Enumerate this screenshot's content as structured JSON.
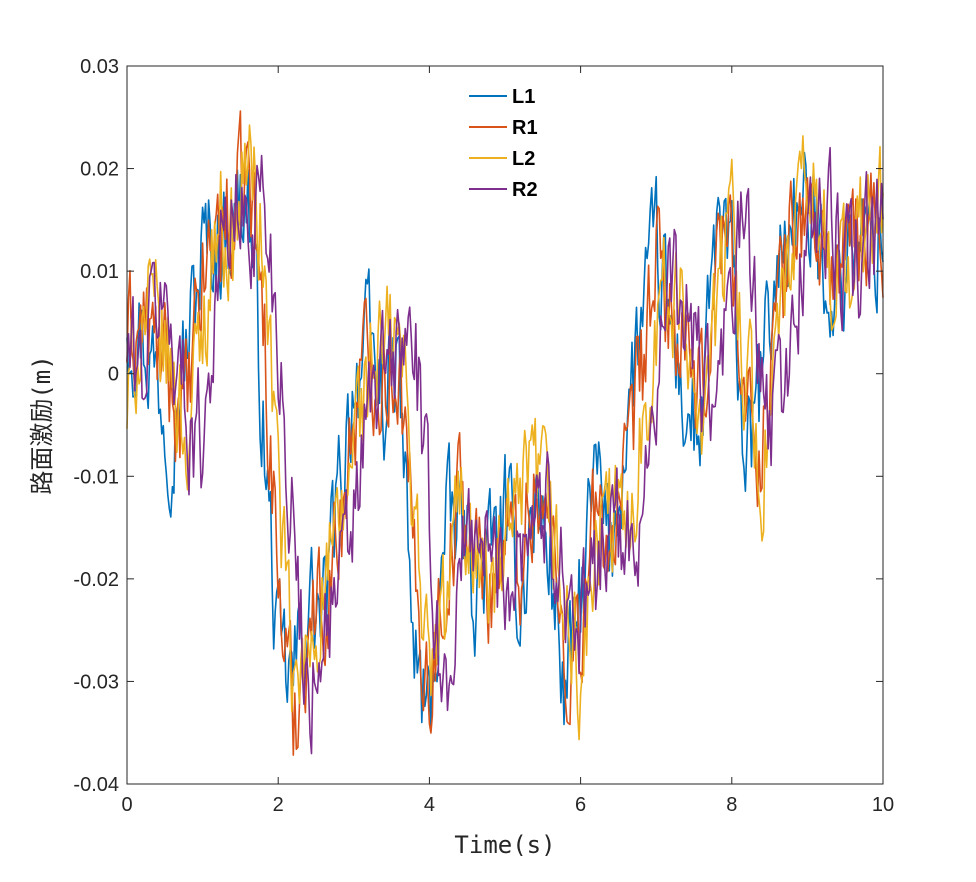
{
  "chart_data": {
    "type": "line",
    "xlabel": "Time(s)",
    "ylabel": "路面激励(m)",
    "xlim": [
      0,
      10
    ],
    "ylim": [
      -0.04,
      0.03
    ],
    "xticks": [
      0,
      2,
      4,
      6,
      8,
      10
    ],
    "xtick_labels": [
      "0",
      "2",
      "4",
      "6",
      "8",
      "10"
    ],
    "yticks": [
      -0.04,
      -0.03,
      -0.02,
      -0.01,
      0,
      0.01,
      0.02,
      0.03
    ],
    "ytick_labels": [
      "-0.04",
      "-0.03",
      "-0.02",
      "-0.01",
      "0",
      "0.01",
      "0.02",
      "0.03"
    ],
    "grid": false,
    "legend_position": "top-center",
    "series": [
      {
        "name": "L1",
        "color": "#0072BD",
        "x": [
          0,
          0.2,
          0.4,
          0.6,
          0.8,
          1.0,
          1.2,
          1.4,
          1.6,
          1.8,
          2.0,
          2.2,
          2.4,
          2.6,
          2.8,
          3.0,
          3.2,
          3.4,
          3.6,
          3.8,
          4.0,
          4.2,
          4.4,
          4.6,
          4.8,
          5.0,
          5.2,
          5.4,
          5.6,
          5.8,
          6.0,
          6.2,
          6.4,
          6.6,
          6.8,
          7.0,
          7.2,
          7.4,
          7.6,
          7.8,
          8.0,
          8.2,
          8.4,
          8.6,
          8.8,
          9.0,
          9.2,
          9.4,
          9.6,
          9.8,
          10.0
        ],
        "y": [
          0.006,
          0.004,
          0.0,
          -0.005,
          0.003,
          0.012,
          0.013,
          0.015,
          0.018,
          -0.005,
          -0.028,
          -0.03,
          -0.022,
          -0.024,
          -0.012,
          0.0,
          0.002,
          -0.002,
          0.0,
          -0.028,
          -0.034,
          -0.016,
          -0.014,
          -0.02,
          -0.018,
          -0.014,
          -0.022,
          -0.012,
          -0.018,
          -0.032,
          -0.022,
          -0.01,
          -0.018,
          -0.005,
          0.005,
          0.012,
          0.004,
          -0.004,
          -0.006,
          0.015,
          0.01,
          -0.01,
          0.0,
          0.01,
          0.016,
          0.015,
          0.012,
          0.008,
          0.014,
          0.012,
          0.014
        ]
      },
      {
        "name": "R1",
        "color": "#D95319",
        "x": [
          0,
          0.2,
          0.4,
          0.6,
          0.8,
          1.0,
          1.2,
          1.4,
          1.6,
          1.8,
          2.0,
          2.2,
          2.4,
          2.6,
          2.8,
          3.0,
          3.2,
          3.4,
          3.6,
          3.8,
          4.0,
          4.2,
          4.4,
          4.6,
          4.8,
          5.0,
          5.2,
          5.4,
          5.6,
          5.8,
          6.0,
          6.2,
          6.4,
          6.6,
          6.8,
          7.0,
          7.2,
          7.4,
          7.6,
          7.8,
          8.0,
          8.2,
          8.4,
          8.6,
          8.8,
          9.0,
          9.2,
          9.4,
          9.6,
          9.8,
          10.0
        ],
        "y": [
          0.003,
          0.005,
          0.002,
          -0.002,
          -0.004,
          0.009,
          0.015,
          0.014,
          0.02,
          0.006,
          -0.02,
          -0.034,
          -0.024,
          -0.022,
          -0.016,
          -0.004,
          0.002,
          0.0,
          0.002,
          -0.02,
          -0.03,
          -0.02,
          -0.012,
          -0.018,
          -0.02,
          -0.016,
          -0.018,
          -0.01,
          -0.016,
          -0.028,
          -0.026,
          -0.014,
          -0.016,
          -0.012,
          0.0,
          0.01,
          0.006,
          0.0,
          -0.004,
          0.012,
          0.014,
          -0.006,
          -0.006,
          0.006,
          0.014,
          0.016,
          0.012,
          0.01,
          0.012,
          0.014,
          0.015
        ]
      },
      {
        "name": "L2",
        "color": "#EDB120",
        "x": [
          0,
          0.2,
          0.4,
          0.6,
          0.8,
          1.0,
          1.2,
          1.4,
          1.6,
          1.8,
          2.0,
          2.2,
          2.4,
          2.6,
          2.8,
          3.0,
          3.2,
          3.4,
          3.6,
          3.8,
          4.0,
          4.2,
          4.4,
          4.6,
          4.8,
          5.0,
          5.2,
          5.4,
          5.6,
          5.8,
          6.0,
          6.2,
          6.4,
          6.6,
          6.8,
          7.0,
          7.2,
          7.4,
          7.6,
          7.8,
          8.0,
          8.2,
          8.4,
          8.6,
          8.8,
          9.0,
          9.2,
          9.4,
          9.6,
          9.8,
          10.0
        ],
        "y": [
          -0.004,
          0.006,
          0.004,
          0.0,
          -0.006,
          0.004,
          0.016,
          0.012,
          0.022,
          0.012,
          -0.01,
          -0.032,
          -0.028,
          -0.02,
          -0.018,
          -0.006,
          0.0,
          0.002,
          0.004,
          -0.012,
          -0.03,
          -0.024,
          -0.012,
          -0.016,
          -0.022,
          -0.018,
          -0.014,
          -0.01,
          -0.014,
          -0.024,
          -0.03,
          -0.018,
          -0.014,
          -0.016,
          -0.006,
          0.006,
          0.008,
          0.004,
          -0.002,
          0.006,
          0.016,
          0.0,
          -0.01,
          0.002,
          0.012,
          0.018,
          0.014,
          0.01,
          0.01,
          0.015,
          0.016
        ]
      },
      {
        "name": "R2",
        "color": "#7E2F8E",
        "x": [
          0,
          0.2,
          0.4,
          0.6,
          0.8,
          1.0,
          1.2,
          1.4,
          1.6,
          1.8,
          2.0,
          2.2,
          2.4,
          2.6,
          2.8,
          3.0,
          3.2,
          3.4,
          3.6,
          3.8,
          4.0,
          4.2,
          4.4,
          4.6,
          4.8,
          5.0,
          5.2,
          5.4,
          5.6,
          5.8,
          6.0,
          6.2,
          6.4,
          6.6,
          6.8,
          7.0,
          7.2,
          7.4,
          7.6,
          7.8,
          8.0,
          8.2,
          8.4,
          8.6,
          8.8,
          9.0,
          9.2,
          9.4,
          9.6,
          9.8,
          10.0
        ],
        "y": [
          0.002,
          0.0,
          0.008,
          0.004,
          -0.004,
          -0.006,
          0.01,
          0.016,
          0.014,
          0.018,
          0.004,
          -0.016,
          -0.032,
          -0.024,
          -0.022,
          -0.014,
          -0.004,
          0.0,
          0.002,
          0.004,
          -0.016,
          -0.032,
          -0.02,
          -0.014,
          -0.018,
          -0.02,
          -0.016,
          -0.012,
          -0.014,
          -0.02,
          -0.026,
          -0.02,
          -0.012,
          -0.02,
          -0.012,
          0.0,
          0.008,
          0.006,
          0.0,
          -0.004,
          0.008,
          0.016,
          -0.004,
          -0.004,
          0.004,
          0.014,
          0.016,
          0.012,
          0.01,
          0.012,
          0.013
        ]
      }
    ]
  }
}
